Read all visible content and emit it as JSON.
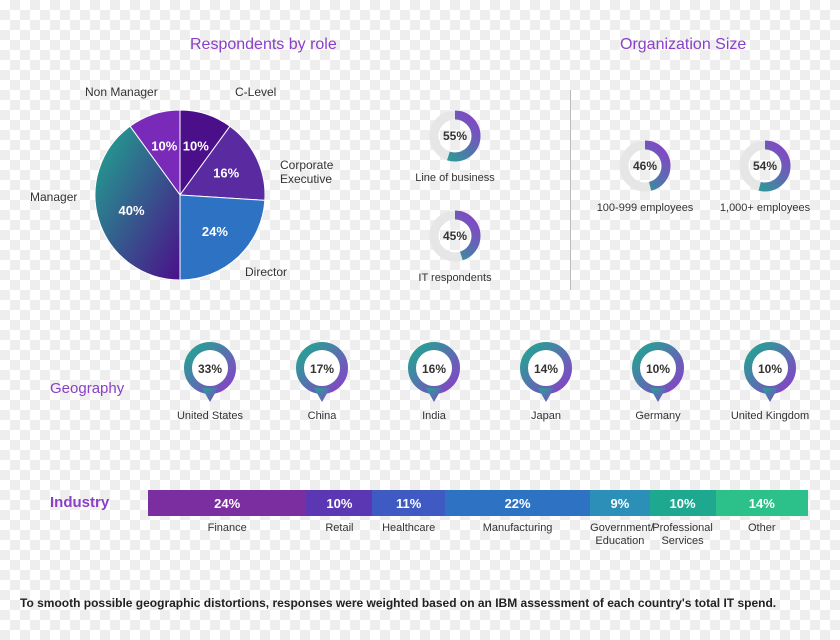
{
  "colors": {
    "purple": "#8a3fc9",
    "deep_purple": "#4b0f8a",
    "violet": "#5a2aa0",
    "teal": "#1fa890",
    "blue": "#2e72c4",
    "mid": "#3a5fb0",
    "gradient_bar": [
      "#7a2ea0",
      "#5c37b3",
      "#3f5ac2",
      "#2e72c4",
      "#2b8fb8",
      "#1fa890",
      "#2cc08a"
    ]
  },
  "titles": {
    "respondents": "Respondents by role",
    "org_size": "Organization Size",
    "geography": "Geography",
    "industry": "Industry"
  },
  "pie": {
    "radius": 85,
    "slices": [
      {
        "label": "Manager",
        "pct": 40,
        "value_text": "40%",
        "fill_from": "#1fa890",
        "fill_to": "#4b0f8a",
        "label_pos": "left"
      },
      {
        "label": "Director",
        "pct": 24,
        "value_text": "24%",
        "fill": "#2e72c4",
        "label_pos": "bottom-right"
      },
      {
        "label": "Corporate Executive",
        "pct": 16,
        "value_text": "16%",
        "fill": "#5a2aa0",
        "label_pos": "right"
      },
      {
        "label": "C-Level",
        "pct": 10,
        "value_text": "10%",
        "fill": "#4b0f8a",
        "label_pos": "top-right"
      },
      {
        "label": "Non Manager",
        "pct": 10,
        "value_text": "10%",
        "fill": "#7a2ab8",
        "label_pos": "top-left"
      }
    ]
  },
  "role_donuts": [
    {
      "label": "Line of business",
      "pct": 55,
      "value_text": "55%"
    },
    {
      "label": "IT respondents",
      "pct": 45,
      "value_text": "45%"
    }
  ],
  "org_donuts": [
    {
      "label": "100-999 employees",
      "pct": 46,
      "value_text": "46%"
    },
    {
      "label": "1,000+ employees",
      "pct": 54,
      "value_text": "54%"
    }
  ],
  "geography": [
    {
      "label": "United States",
      "pct": 33,
      "value_text": "33%"
    },
    {
      "label": "China",
      "pct": 17,
      "value_text": "17%"
    },
    {
      "label": "India",
      "pct": 16,
      "value_text": "16%"
    },
    {
      "label": "Japan",
      "pct": 14,
      "value_text": "14%"
    },
    {
      "label": "Germany",
      "pct": 10,
      "value_text": "10%"
    },
    {
      "label": "United Kingdom",
      "pct": 10,
      "value_text": "10%"
    }
  ],
  "industry": [
    {
      "label": "Finance",
      "pct": 24,
      "value_text": "24%"
    },
    {
      "label": "Retail",
      "pct": 10,
      "value_text": "10%"
    },
    {
      "label": "Healthcare",
      "pct": 11,
      "value_text": "11%"
    },
    {
      "label": "Manufacturing",
      "pct": 22,
      "value_text": "22%"
    },
    {
      "label": "Government/ Education",
      "pct": 9,
      "value_text": "9%"
    },
    {
      "label": "Professional Services",
      "pct": 10,
      "value_text": "10%"
    },
    {
      "label": "Other",
      "pct": 14,
      "value_text": "14%"
    }
  ],
  "footnote": "To smooth possible geographic distortions, responses were weighted based on an IBM assessment of each country's total IT spend."
}
